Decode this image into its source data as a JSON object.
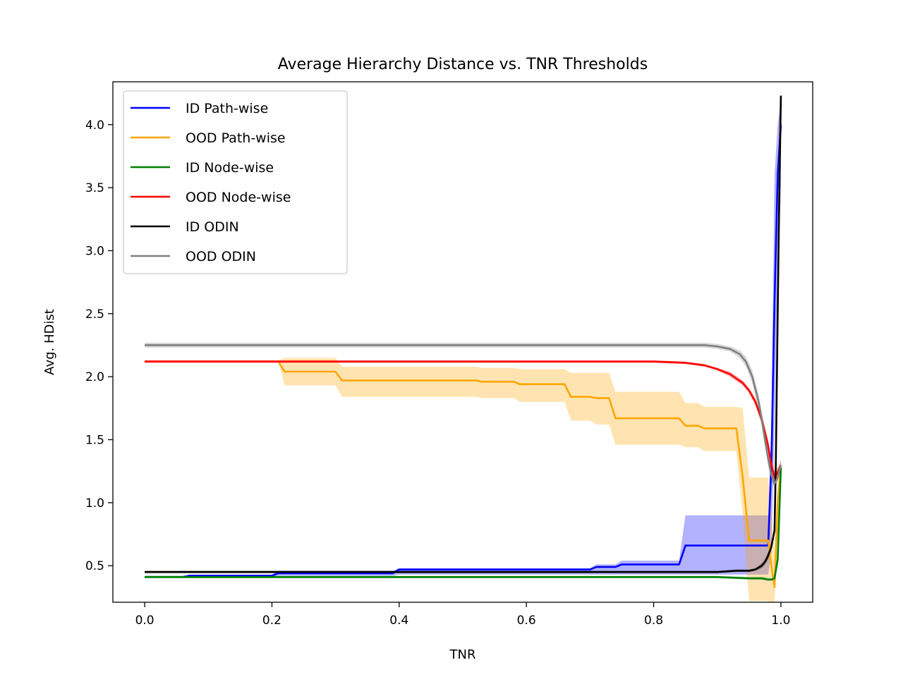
{
  "chart_data": {
    "type": "line",
    "title": "Average Hierarchy Distance vs. TNR Thresholds",
    "xlabel": "TNR",
    "ylabel": "Avg. HDist",
    "xlim": [
      -0.05,
      1.05
    ],
    "ylim": [
      0.21,
      4.34
    ],
    "xticks": [
      0.0,
      0.2,
      0.4,
      0.6,
      0.8,
      1.0
    ],
    "xtick_labels": [
      "0.0",
      "0.2",
      "0.4",
      "0.6",
      "0.8",
      "1.0"
    ],
    "yticks": [
      0.5,
      1.0,
      1.5,
      2.0,
      2.5,
      3.0,
      3.5,
      4.0
    ],
    "ytick_labels": [
      "0.5",
      "1.0",
      "1.5",
      "2.0",
      "2.5",
      "3.0",
      "3.5",
      "4.0"
    ],
    "grid": false,
    "legend_position": "upper-left",
    "series": [
      {
        "name": "ID Path-wise",
        "color": "#0000ff",
        "x": [
          0.0,
          0.06,
          0.07,
          0.2,
          0.21,
          0.39,
          0.4,
          0.7,
          0.71,
          0.74,
          0.75,
          0.84,
          0.85,
          0.98,
          0.985,
          0.99,
          0.995,
          1.0
        ],
        "y": [
          0.41,
          0.41,
          0.42,
          0.42,
          0.44,
          0.44,
          0.47,
          0.47,
          0.49,
          0.49,
          0.51,
          0.51,
          0.66,
          0.66,
          1.3,
          2.6,
          3.6,
          4.0
        ],
        "band_low": [
          0.41,
          0.41,
          0.41,
          0.41,
          0.42,
          0.42,
          0.43,
          0.43,
          0.43,
          0.43,
          0.43,
          0.43,
          0.43,
          0.43,
          0.6,
          1.6,
          2.8,
          3.5
        ],
        "band_high": [
          0.42,
          0.42,
          0.43,
          0.43,
          0.46,
          0.46,
          0.48,
          0.48,
          0.51,
          0.51,
          0.54,
          0.54,
          0.9,
          0.9,
          1.6,
          3.6,
          4.0,
          4.2
        ]
      },
      {
        "name": "OOD Path-wise",
        "color": "#ffa500",
        "x": [
          0.0,
          0.21,
          0.22,
          0.3,
          0.31,
          0.52,
          0.53,
          0.58,
          0.59,
          0.66,
          0.67,
          0.7,
          0.71,
          0.73,
          0.74,
          0.84,
          0.85,
          0.87,
          0.88,
          0.93,
          0.94,
          0.95,
          0.96,
          0.98,
          0.985,
          0.99,
          0.995,
          1.0
        ],
        "y": [
          2.12,
          2.12,
          2.04,
          2.04,
          1.97,
          1.97,
          1.96,
          1.96,
          1.94,
          1.94,
          1.84,
          1.84,
          1.83,
          1.83,
          1.67,
          1.67,
          1.61,
          1.61,
          1.59,
          1.59,
          1.2,
          0.7,
          0.7,
          0.7,
          0.5,
          0.33,
          1.0,
          1.28
        ],
        "band_low": [
          2.12,
          2.12,
          1.93,
          1.93,
          1.84,
          1.84,
          1.83,
          1.83,
          1.8,
          1.8,
          1.65,
          1.65,
          1.62,
          1.62,
          1.46,
          1.46,
          1.44,
          1.44,
          1.41,
          1.41,
          0.9,
          0.22,
          0.22,
          0.22,
          0.2,
          0.2,
          0.8,
          1.2
        ],
        "band_high": [
          2.13,
          2.13,
          2.15,
          2.15,
          2.08,
          2.08,
          2.07,
          2.07,
          2.06,
          2.06,
          2.03,
          2.03,
          2.03,
          2.03,
          1.88,
          1.88,
          1.79,
          1.79,
          1.76,
          1.76,
          1.75,
          1.2,
          1.2,
          1.2,
          0.9,
          0.6,
          1.2,
          1.35
        ]
      },
      {
        "name": "ID Node-wise",
        "color": "#008000",
        "x": [
          0.0,
          0.9,
          0.95,
          0.97,
          0.98,
          0.985,
          0.99,
          0.995,
          1.0
        ],
        "y": [
          0.41,
          0.41,
          0.4,
          0.4,
          0.39,
          0.39,
          0.4,
          0.55,
          1.28
        ],
        "band_low": [
          0.4,
          0.4,
          0.39,
          0.39,
          0.38,
          0.38,
          0.38,
          0.5,
          1.2
        ],
        "band_high": [
          0.42,
          0.42,
          0.41,
          0.41,
          0.4,
          0.4,
          0.42,
          0.6,
          1.3
        ]
      },
      {
        "name": "OOD Node-wise",
        "color": "#ff0000",
        "x": [
          0.0,
          0.5,
          0.8,
          0.85,
          0.88,
          0.9,
          0.92,
          0.94,
          0.95,
          0.96,
          0.97,
          0.98,
          0.985,
          0.99,
          0.995,
          1.0
        ],
        "y": [
          2.12,
          2.12,
          2.12,
          2.11,
          2.09,
          2.06,
          2.02,
          1.95,
          1.89,
          1.8,
          1.66,
          1.45,
          1.3,
          1.2,
          1.24,
          1.3
        ],
        "band_low": [
          2.11,
          2.11,
          2.11,
          2.1,
          2.08,
          2.05,
          2.0,
          1.93,
          1.87,
          1.77,
          1.62,
          1.4,
          1.25,
          1.15,
          1.2,
          1.27
        ],
        "band_high": [
          2.13,
          2.13,
          2.13,
          2.12,
          2.1,
          2.07,
          2.04,
          1.97,
          1.91,
          1.83,
          1.7,
          1.5,
          1.35,
          1.25,
          1.28,
          1.33
        ]
      },
      {
        "name": "ID ODIN",
        "color": "#000000",
        "x": [
          0.0,
          0.9,
          0.93,
          0.95,
          0.96,
          0.97,
          0.975,
          0.98,
          0.985,
          0.99,
          0.992,
          0.994,
          0.996,
          0.998,
          1.0
        ],
        "y": [
          0.45,
          0.45,
          0.46,
          0.46,
          0.47,
          0.5,
          0.53,
          0.58,
          0.65,
          0.78,
          1.3,
          2.1,
          2.9,
          3.6,
          4.23
        ],
        "band_low": [
          0.44,
          0.44,
          0.45,
          0.45,
          0.46,
          0.48,
          0.51,
          0.55,
          0.62,
          0.74,
          1.25,
          2.0,
          2.8,
          3.5,
          4.2
        ],
        "band_high": [
          0.46,
          0.46,
          0.47,
          0.47,
          0.48,
          0.52,
          0.55,
          0.61,
          0.68,
          0.82,
          1.35,
          2.2,
          3.0,
          3.7,
          4.26
        ]
      },
      {
        "name": "OOD ODIN",
        "color": "#808080",
        "x": [
          0.0,
          0.5,
          0.85,
          0.88,
          0.9,
          0.92,
          0.935,
          0.945,
          0.955,
          0.965,
          0.97,
          0.975,
          0.98,
          0.985,
          0.99,
          0.995,
          1.0
        ],
        "y": [
          2.25,
          2.25,
          2.25,
          2.25,
          2.24,
          2.22,
          2.18,
          2.12,
          2.0,
          1.8,
          1.66,
          1.5,
          1.35,
          1.22,
          1.15,
          1.2,
          1.3
        ],
        "band_low": [
          2.23,
          2.23,
          2.23,
          2.23,
          2.22,
          2.2,
          2.15,
          2.08,
          1.95,
          1.74,
          1.6,
          1.44,
          1.29,
          1.17,
          1.12,
          1.17,
          1.27
        ],
        "band_high": [
          2.27,
          2.27,
          2.27,
          2.27,
          2.26,
          2.24,
          2.21,
          2.16,
          2.05,
          1.86,
          1.72,
          1.56,
          1.41,
          1.27,
          1.18,
          1.23,
          1.33
        ]
      }
    ]
  }
}
